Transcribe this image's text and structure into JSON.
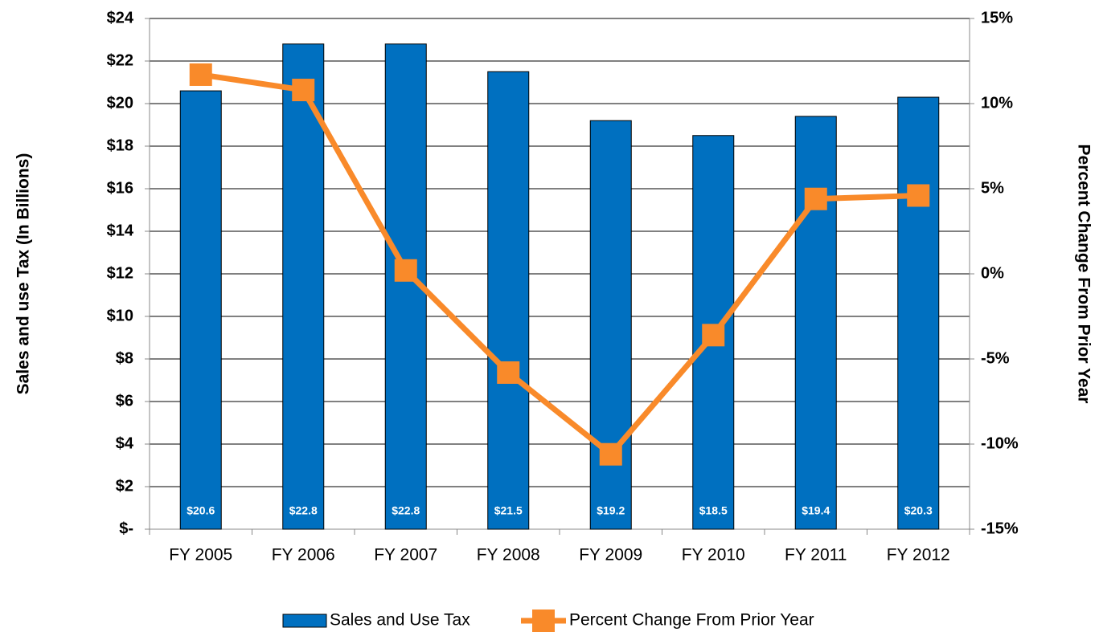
{
  "chart_data": {
    "type": "bar+line",
    "y_label": "Sales and use Tax (In Billions)",
    "y2_label": "Percent Change From Prior Year",
    "categories": [
      "FY 2005",
      "FY 2006",
      "FY 2007",
      "FY 2008",
      "FY 2009",
      "FY 2010",
      "FY 2011",
      "FY 2012"
    ],
    "series": [
      {
        "name": "Sales and Use Tax",
        "type": "bar",
        "color": "#0070c0",
        "values": [
          20.6,
          22.8,
          22.8,
          21.5,
          19.2,
          18.5,
          19.4,
          20.3
        ],
        "value_labels": [
          "$20.6",
          "$22.8",
          "$22.8",
          "$21.5",
          "$19.2",
          "$18.5",
          "$19.4",
          "$20.3"
        ]
      },
      {
        "name": "Percent Change From Prior Year",
        "type": "line",
        "axis": "y2",
        "color": "#f98a2a",
        "values": [
          11.7,
          10.8,
          0.2,
          -5.8,
          -10.6,
          -3.6,
          4.4,
          4.6
        ]
      }
    ],
    "ylim": [
      0,
      24
    ],
    "yticks": [
      {
        "value": 0,
        "label": "$-"
      },
      {
        "value": 2,
        "label": "$2"
      },
      {
        "value": 4,
        "label": "$4"
      },
      {
        "value": 6,
        "label": "$6"
      },
      {
        "value": 8,
        "label": "$8"
      },
      {
        "value": 10,
        "label": "$10"
      },
      {
        "value": 12,
        "label": "$12"
      },
      {
        "value": 14,
        "label": "$14"
      },
      {
        "value": 16,
        "label": "$16"
      },
      {
        "value": 18,
        "label": "$18"
      },
      {
        "value": 20,
        "label": "$20"
      },
      {
        "value": 22,
        "label": "$22"
      },
      {
        "value": 24,
        "label": "$24"
      }
    ],
    "y2lim": [
      -15,
      15
    ],
    "y2ticks": [
      {
        "value": -15,
        "label": "-15%"
      },
      {
        "value": -10,
        "label": "-10%"
      },
      {
        "value": -5,
        "label": "-5%"
      },
      {
        "value": 0,
        "label": "0%"
      },
      {
        "value": 5,
        "label": "5%"
      },
      {
        "value": 10,
        "label": "10%"
      },
      {
        "value": 15,
        "label": "15%"
      }
    ],
    "grid": true
  }
}
